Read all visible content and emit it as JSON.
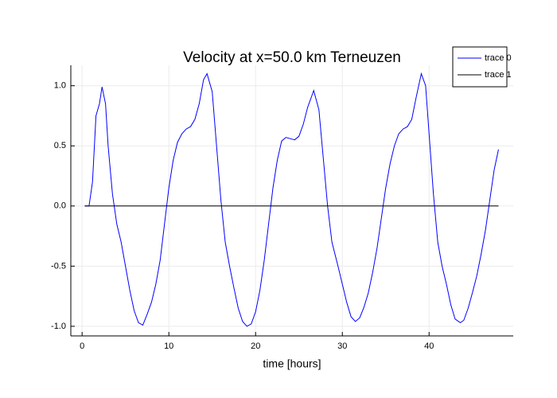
{
  "chart_data": {
    "type": "line",
    "title": "Velocity at x=50.0 km Terneuzen",
    "xlabel": "time [hours]",
    "series": [
      {
        "name": "trace 0",
        "color": "#0000ff",
        "x": [
          0.3,
          0.8,
          1.2,
          1.6,
          2.0,
          2.3,
          2.7,
          3.0,
          3.5,
          4.0,
          4.5,
          5.0,
          5.5,
          6.0,
          6.5,
          7.0,
          7.5,
          8.0,
          8.5,
          9.0,
          9.5,
          10.0,
          10.5,
          11.0,
          11.5,
          12.0,
          12.5,
          13.0,
          13.5,
          14.0,
          14.4,
          15.0,
          15.5,
          16.0,
          16.5,
          17.0,
          17.5,
          18.0,
          18.5,
          19.0,
          19.5,
          20.0,
          20.5,
          21.0,
          21.5,
          22.0,
          22.5,
          23.0,
          23.5,
          24.0,
          24.5,
          25.0,
          25.5,
          26.0,
          26.7,
          27.3,
          27.8,
          28.3,
          28.8,
          29.5,
          30.0,
          30.5,
          31.0,
          31.5,
          32.0,
          32.5,
          33.0,
          33.5,
          34.0,
          34.5,
          35.0,
          35.5,
          36.0,
          36.5,
          37.0,
          37.5,
          38.0,
          38.5,
          39.1,
          39.6,
          40.0,
          40.5,
          41.0,
          41.5,
          42.0,
          42.5,
          43.0,
          43.6,
          44.0,
          44.5,
          45.0,
          45.5,
          46.0,
          46.5,
          47.0,
          47.5,
          48.0
        ],
        "values": [
          0,
          0,
          0.2,
          0.75,
          0.85,
          0.99,
          0.85,
          0.5,
          0.1,
          -0.15,
          -0.3,
          -0.5,
          -0.7,
          -0.87,
          -0.97,
          -0.99,
          -0.9,
          -0.8,
          -0.65,
          -0.45,
          -0.15,
          0.15,
          0.38,
          0.53,
          0.6,
          0.64,
          0.66,
          0.72,
          0.85,
          1.05,
          1.1,
          0.95,
          0.5,
          0.05,
          -0.3,
          -0.5,
          -0.68,
          -0.85,
          -0.96,
          -1.0,
          -0.98,
          -0.88,
          -0.7,
          -0.45,
          -0.15,
          0.15,
          0.38,
          0.54,
          0.57,
          0.56,
          0.55,
          0.58,
          0.68,
          0.82,
          0.96,
          0.8,
          0.4,
          0.0,
          -0.3,
          -0.5,
          -0.65,
          -0.8,
          -0.92,
          -0.96,
          -0.93,
          -0.84,
          -0.72,
          -0.55,
          -0.35,
          -0.1,
          0.15,
          0.35,
          0.5,
          0.6,
          0.64,
          0.66,
          0.72,
          0.9,
          1.1,
          1.0,
          0.6,
          0.1,
          -0.3,
          -0.5,
          -0.65,
          -0.82,
          -0.94,
          -0.97,
          -0.95,
          -0.85,
          -0.72,
          -0.58,
          -0.4,
          -0.2,
          0.05,
          0.3,
          0.47
        ]
      },
      {
        "name": "trace 1",
        "color": "#000000",
        "x": [
          0.3,
          48.0
        ],
        "values": [
          0,
          0
        ]
      }
    ],
    "xlim": [
      -1.3,
      49.7
    ],
    "xticks": [
      0,
      10,
      20,
      30,
      40
    ],
    "ylim": [
      -1.08,
      1.17
    ],
    "yticks": [
      {
        "value": -1.0,
        "label": "-1.0"
      },
      {
        "value": -0.5,
        "label": "-0.5"
      },
      {
        "value": 0,
        "label": "0.0"
      },
      {
        "value": 0.5,
        "label": "0.5"
      },
      {
        "value": 1.0,
        "label": "1.0"
      }
    ],
    "grid": true,
    "legend": "top-right"
  }
}
